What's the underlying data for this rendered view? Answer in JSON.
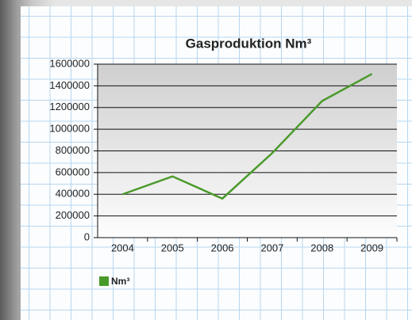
{
  "chart_data": {
    "type": "line",
    "title": "Gasproduktion Nm³",
    "categories": [
      "2004",
      "2005",
      "2006",
      "2007",
      "2008",
      "2009"
    ],
    "series": [
      {
        "name": "Nm³",
        "color": "#4a9a2a",
        "values": [
          400000,
          565000,
          360000,
          780000,
          1260000,
          1510000
        ]
      }
    ],
    "ylim": [
      0,
      1600000
    ],
    "yticks": [
      0,
      200000,
      400000,
      600000,
      800000,
      1000000,
      1200000,
      1400000,
      1600000
    ],
    "grid": true
  }
}
